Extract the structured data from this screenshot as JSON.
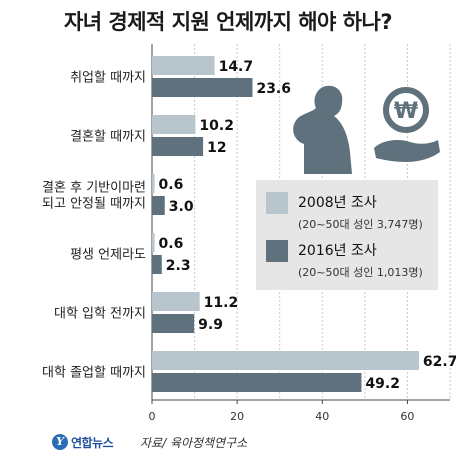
{
  "title": "자녀 경제적 지원 언제까지 해야 하나?",
  "source": "자료/ 육아정책연구소",
  "logo": {
    "text": "연합뉴스",
    "glyph": "Y"
  },
  "colors": {
    "series2008": "#b9c5cc",
    "series2016": "#5e717c"
  },
  "legend": [
    {
      "name": "2008년 조사",
      "note": "(20~50대 성인 3,747명)"
    },
    {
      "name": "2016년 조사",
      "note": "(20~50대 성인 1,013명)"
    }
  ],
  "chart_data": {
    "type": "bar",
    "orientation": "horizontal",
    "categories": [
      [
        "취업할 때까지"
      ],
      [
        "결혼할 때까지"
      ],
      [
        "결혼 후 기반이마련",
        "되고 안정될 때까지"
      ],
      [
        "평생 언제라도"
      ],
      [
        "대학 입학 전까지"
      ],
      [
        "대학 졸업할 때까지"
      ]
    ],
    "series": [
      {
        "name": "2008년 조사",
        "values": [
          14.7,
          10.2,
          0.6,
          0.6,
          11.2,
          62.7
        ],
        "labels": [
          "14.7",
          "10.2",
          "0.6",
          "0.6",
          "11.2",
          "62.7"
        ]
      },
      {
        "name": "2016년 조사",
        "values": [
          23.6,
          12,
          3.0,
          2.3,
          9.9,
          49.2
        ],
        "labels": [
          "23.6",
          "12",
          "3.0",
          "2.3",
          "9.9",
          "49.2"
        ]
      }
    ],
    "xlim": [
      0,
      70
    ],
    "xticks": [
      "0",
      "20",
      "40",
      "60"
    ],
    "grid": "vertical dotted",
    "legend_position": "right"
  }
}
